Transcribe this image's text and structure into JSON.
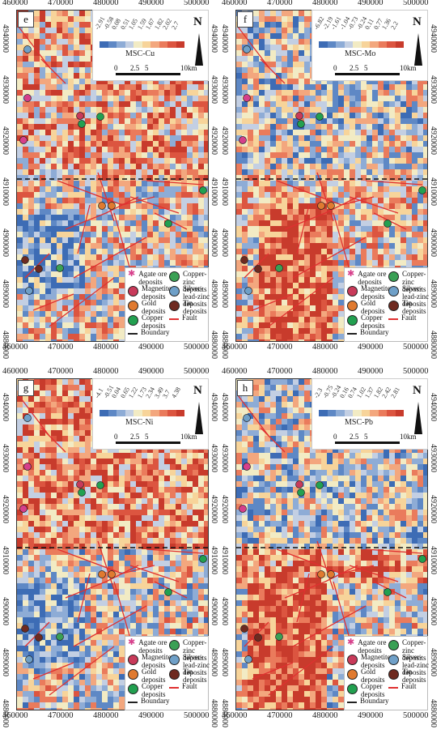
{
  "panels": [
    {
      "letter": "e",
      "name": "MSC-Cu",
      "values": [
        "-2.91",
        "-0.58",
        "0.08",
        "0.51",
        "1.05",
        "1.59",
        "1.67",
        "1.82",
        "2.02",
        "2.7"
      ]
    },
    {
      "letter": "f",
      "name": "MSC-Mo",
      "values": [
        "-6.82",
        "-2.19",
        "-1.61",
        "-1.04",
        "-0.73",
        "-0.24",
        "0.11",
        "0.77",
        "1.36",
        "2.2"
      ]
    },
    {
      "letter": "g",
      "name": "MSC-Ni",
      "values": [
        "-4.1",
        "-0.51",
        "0.04",
        "0.65",
        "1.22",
        "1.73",
        "2.34",
        "3.49",
        "3.7",
        "4.38"
      ]
    },
    {
      "letter": "h",
      "name": "MSC-Pb",
      "values": [
        "-2.3",
        "-0.75",
        "-0.24",
        "0.16",
        "0.74",
        "1.02",
        "1.37",
        "1.82",
        "2.42",
        "2.81"
      ]
    }
  ],
  "x_ticks": [
    "460000",
    "470000",
    "480000",
    "490000",
    "500000"
  ],
  "y_ticks": [
    "4940000",
    "4930000",
    "4920000",
    "4910000",
    "4900000",
    "4890000",
    "4880000"
  ],
  "scale_labels": [
    "0",
    "2.5",
    "5",
    "10km"
  ],
  "north": "N",
  "legend": [
    {
      "label": "Agate ore deposits",
      "color": "#d63f8b",
      "shape": "star"
    },
    {
      "label": "Copper-zinc deposits",
      "color": "#3aa055",
      "shape": "half"
    },
    {
      "label": "Magnetite deposits",
      "color": "#c83a5a",
      "shape": "circle"
    },
    {
      "label": "Silver-lead-zinc deposits",
      "color": "#6fa0c8",
      "shape": "quad"
    },
    {
      "label": "Gold deposits",
      "color": "#e07a30",
      "shape": "circle"
    },
    {
      "label": "Tin deposits",
      "color": "#6e2a20",
      "shape": "circle"
    },
    {
      "label": "Copper deposits",
      "color": "#22a050",
      "shape": "circle"
    },
    {
      "label": "Fault",
      "color": "#e03030",
      "shape": "line"
    },
    {
      "label": "Boundary",
      "color": "#222222",
      "shape": "dash"
    }
  ],
  "colors": {
    "ramp": [
      "#3d6cb5",
      "#5e88c5",
      "#8eacd6",
      "#c3cfe3",
      "#f2ebc4",
      "#f7d49a",
      "#f3a77e",
      "#ea7b5c",
      "#dc5540",
      "#c83b2c"
    ],
    "fault": "#e03030"
  }
}
